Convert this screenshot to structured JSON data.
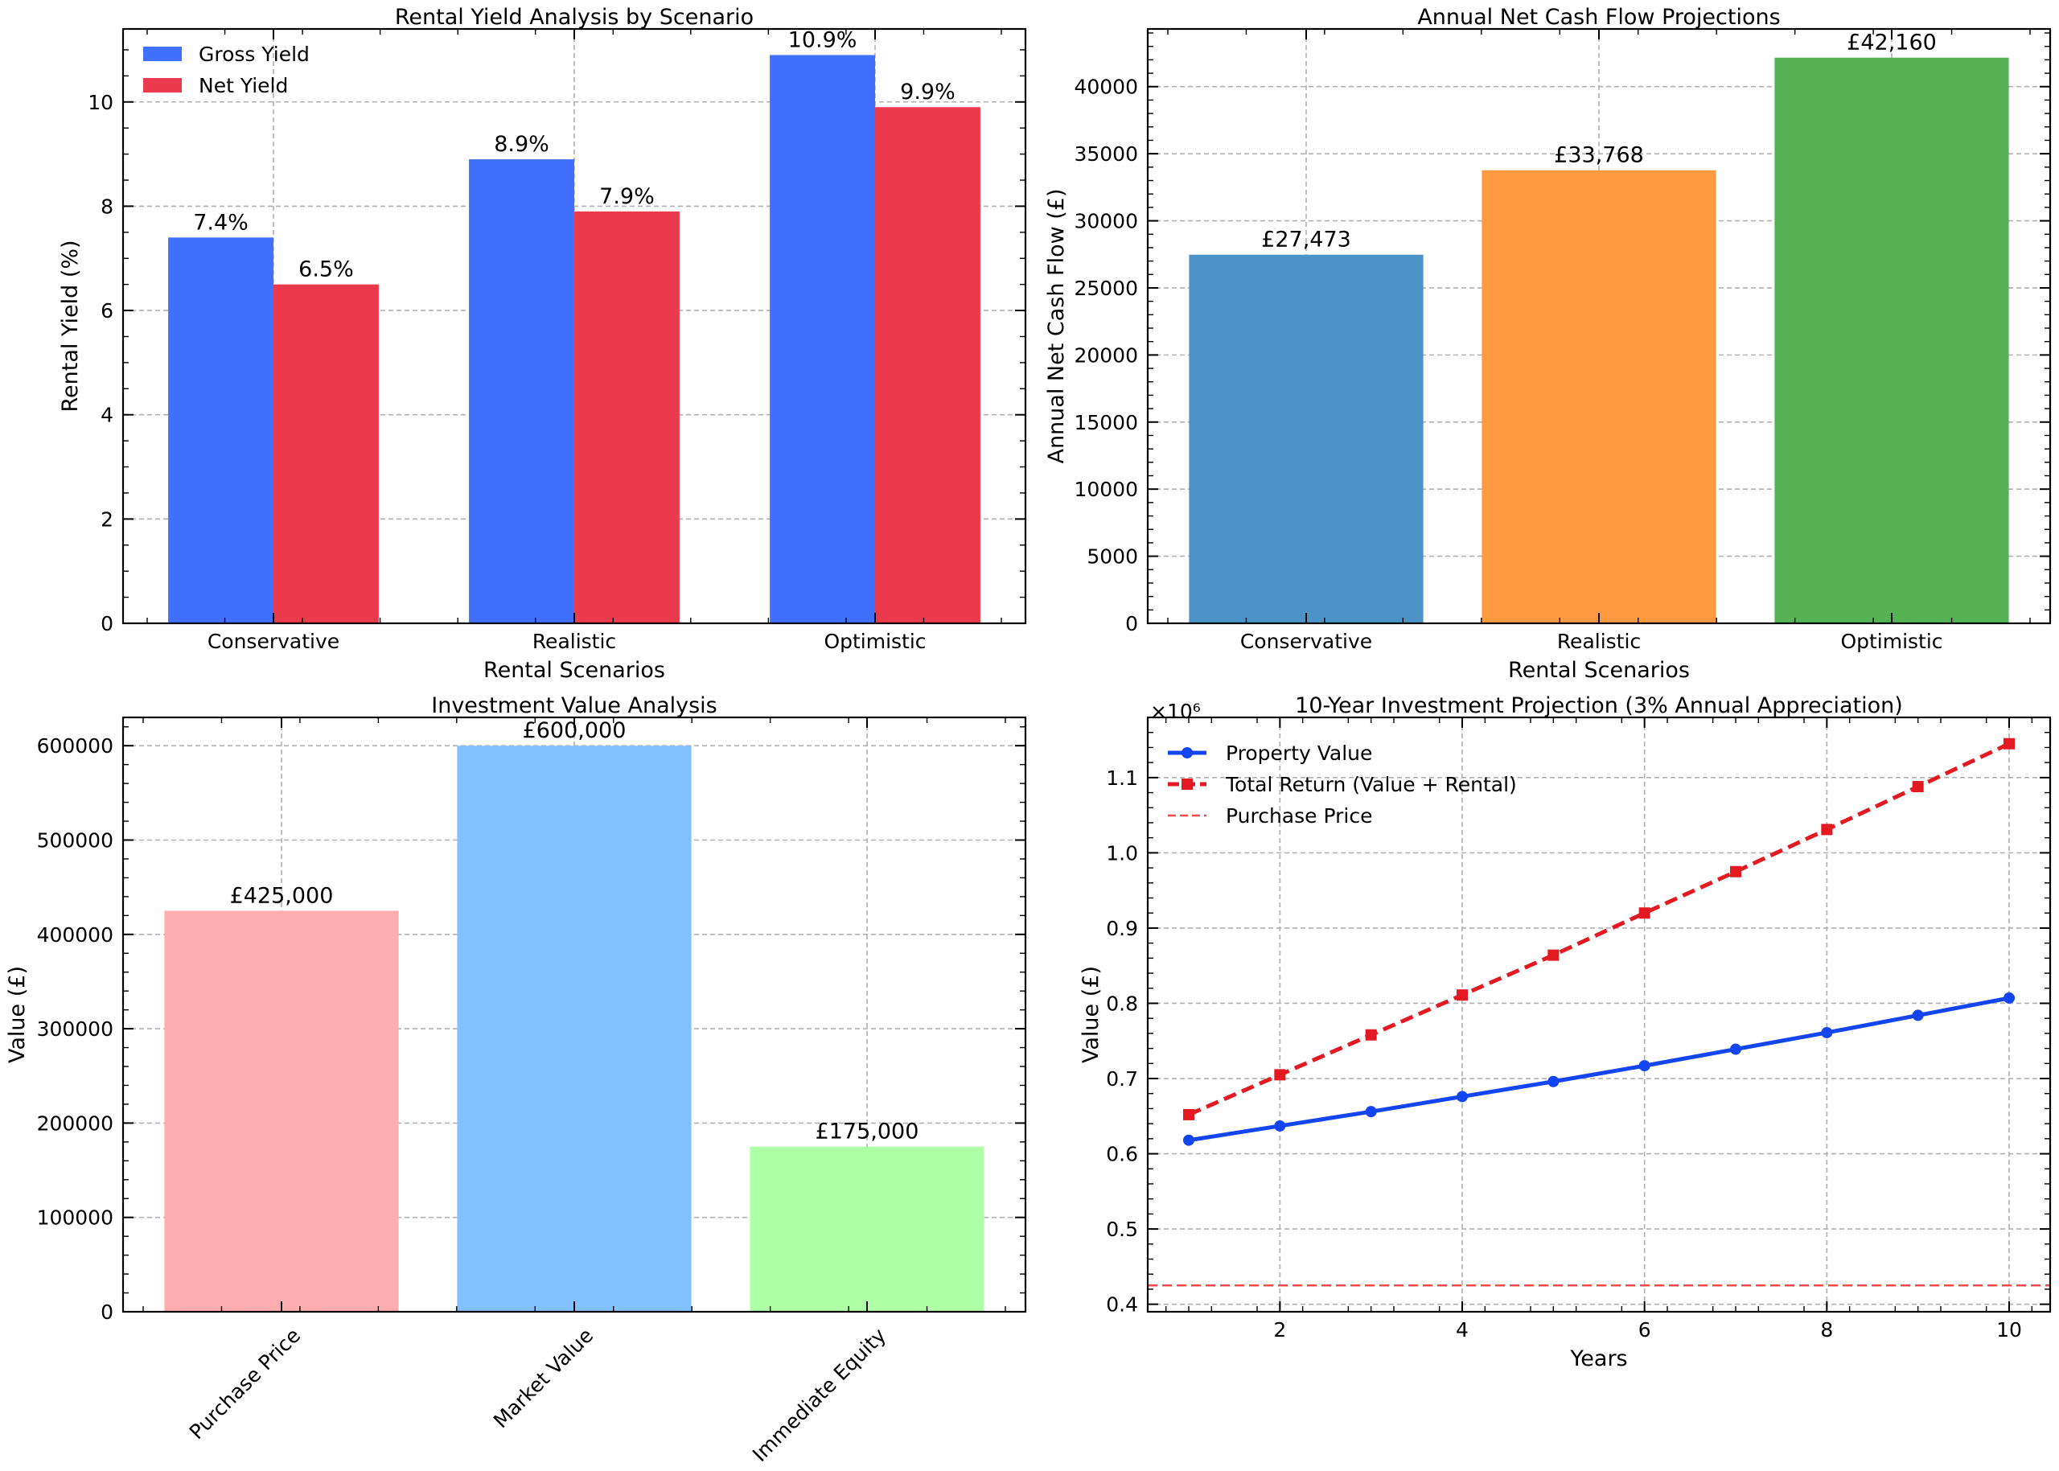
{
  "chart_data": [
    {
      "type": "bar",
      "title": "Rental Yield Analysis by Scenario",
      "xlabel": "Rental Scenarios",
      "ylabel": "Rental Yield (%)",
      "categories": [
        "Conservative",
        "Realistic",
        "Optimistic"
      ],
      "series": [
        {
          "name": "Gross Yield",
          "values": [
            7.4,
            8.9,
            10.9
          ],
          "labels": [
            "7.4%",
            "8.9%",
            "10.9%"
          ],
          "color": "#4170fd"
        },
        {
          "name": "Net Yield",
          "values": [
            6.5,
            7.9,
            9.9
          ],
          "labels": [
            "6.5%",
            "7.9%",
            "9.9%"
          ],
          "color": "#eb3a4b"
        }
      ],
      "ylim": [
        0,
        11.4
      ],
      "yticks": [
        0,
        2,
        4,
        6,
        8,
        10
      ],
      "grid": true,
      "legend": "top-left"
    },
    {
      "type": "bar",
      "title": "Annual Net Cash Flow Projections",
      "xlabel": "Rental Scenarios",
      "ylabel": "Annual Net Cash Flow (£)",
      "categories": [
        "Conservative",
        "Realistic",
        "Optimistic"
      ],
      "values": [
        27473,
        33768,
        42160
      ],
      "labels": [
        "£27,473",
        "£33,768",
        "£42,160"
      ],
      "colors": [
        "#4b93c6",
        "#fd9940",
        "#56b355"
      ],
      "ylim": [
        0,
        44300
      ],
      "yticks": [
        0,
        5000,
        10000,
        15000,
        20000,
        25000,
        30000,
        35000,
        40000
      ],
      "grid": true
    },
    {
      "type": "bar",
      "title": "Investment Value Analysis",
      "xlabel": "",
      "ylabel": "Value (£)",
      "categories": [
        "Purchase Price",
        "Market Value",
        "Immediate Equity"
      ],
      "values": [
        425000,
        600000,
        175000
      ],
      "labels": [
        "£425,000",
        "£600,000",
        "£175,000"
      ],
      "colors": [
        "#ffadb1",
        "#83c0ff",
        "#afffa7"
      ],
      "ylim": [
        0,
        630000
      ],
      "yticks": [
        0,
        100000,
        200000,
        300000,
        400000,
        500000,
        600000
      ],
      "grid": true
    },
    {
      "type": "line",
      "title": "10-Year Investment Projection (3% Annual Appreciation)",
      "xlabel": "Years",
      "ylabel": "Value (£)",
      "offset_label": "×10⁶",
      "x": [
        1,
        2,
        3,
        4,
        5,
        6,
        7,
        8,
        9,
        10
      ],
      "series": [
        {
          "name": "Property Value",
          "values": [
            618000,
            637000,
            656000,
            676000,
            696000,
            717000,
            739000,
            761000,
            784000,
            807000
          ],
          "color": "#1345f2",
          "style": "solid",
          "marker": "circle"
        },
        {
          "name": "Total Return (Value + Rental)",
          "values": [
            652000,
            705000,
            758000,
            811000,
            864000,
            920000,
            975000,
            1031000,
            1088000,
            1145000
          ],
          "color": "#e31a22",
          "style": "dashed",
          "marker": "square"
        }
      ],
      "hline": {
        "name": "Purchase Price",
        "value": 425000,
        "color": "#f04a4a"
      },
      "xlim": [
        0.55,
        10.45
      ],
      "ylim": [
        390000,
        1180000
      ],
      "xticks": [
        2,
        4,
        6,
        8,
        10
      ],
      "yticks": [
        400000,
        500000,
        600000,
        700000,
        800000,
        900000,
        1000000,
        1100000
      ],
      "yticklabels": [
        "0.4",
        "0.5",
        "0.6",
        "0.7",
        "0.8",
        "0.9",
        "1.0",
        "1.1"
      ],
      "grid": true,
      "legend": "top-left"
    }
  ]
}
